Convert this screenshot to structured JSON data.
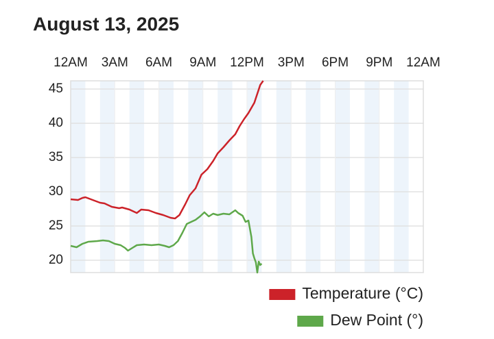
{
  "chart_data": {
    "type": "line",
    "title": "August 13, 2025",
    "xlim": [
      0,
      24
    ],
    "xticks": [
      {
        "value": 0,
        "label": "12AM"
      },
      {
        "value": 3,
        "label": "3AM"
      },
      {
        "value": 6,
        "label": "6AM"
      },
      {
        "value": 9,
        "label": "9AM"
      },
      {
        "value": 12,
        "label": "12PM"
      },
      {
        "value": 15,
        "label": "3PM"
      },
      {
        "value": 18,
        "label": "6PM"
      },
      {
        "value": 21,
        "label": "9PM"
      },
      {
        "value": 24,
        "label": "12AM"
      }
    ],
    "ylim": [
      18.2,
      46.2
    ],
    "yticks": [
      20,
      25,
      30,
      35,
      40,
      45
    ],
    "grid": true,
    "legend": "bottom-right",
    "series": [
      {
        "name": "Temperature (°C)",
        "color": "#cc2229",
        "x": [
          0,
          0.5,
          0.8,
          1.0,
          1.5,
          2.0,
          2.3,
          2.8,
          3.3,
          3.5,
          4.0,
          4.5,
          4.8,
          5.3,
          5.8,
          6.3,
          6.8,
          7.1,
          7.4,
          7.8,
          8.1,
          8.5,
          8.9,
          9.3,
          9.7,
          10.0,
          10.4,
          10.8,
          11.2,
          11.5,
          11.8,
          12.1,
          12.5,
          12.9,
          13.1
        ],
        "values": [
          28.9,
          28.8,
          29.1,
          29.2,
          28.8,
          28.4,
          28.3,
          27.8,
          27.6,
          27.7,
          27.4,
          26.9,
          27.4,
          27.3,
          26.9,
          26.6,
          26.2,
          26.1,
          26.6,
          28.2,
          29.5,
          30.5,
          32.5,
          33.3,
          34.5,
          35.6,
          36.5,
          37.5,
          38.4,
          39.6,
          40.6,
          41.5,
          43.0,
          45.6,
          46.2
        ]
      },
      {
        "name": "Dew Point (°)",
        "color": "#5ea84a",
        "x": [
          0,
          0.4,
          0.8,
          1.2,
          1.8,
          2.2,
          2.6,
          3.0,
          3.4,
          3.7,
          3.9,
          4.2,
          4.5,
          5.0,
          5.5,
          6.0,
          6.4,
          6.7,
          7.0,
          7.3,
          7.6,
          7.9,
          8.2,
          8.5,
          8.8,
          9.1,
          9.4,
          9.7,
          10.0,
          10.4,
          10.8,
          11.2,
          11.4,
          11.7,
          11.9,
          12.1,
          12.3,
          12.4,
          12.5,
          12.6,
          12.7,
          12.8,
          12.9,
          13.0
        ],
        "values": [
          22.1,
          21.9,
          22.4,
          22.7,
          22.8,
          22.9,
          22.8,
          22.4,
          22.2,
          21.8,
          21.4,
          21.8,
          22.2,
          22.3,
          22.2,
          22.3,
          22.1,
          21.9,
          22.2,
          22.8,
          24.0,
          25.3,
          25.6,
          25.9,
          26.4,
          27.0,
          26.4,
          26.8,
          26.6,
          26.8,
          26.7,
          27.3,
          26.9,
          26.5,
          25.6,
          25.8,
          23.4,
          21.0,
          20.3,
          19.7,
          18.2,
          19.8,
          19.3,
          19.5
        ]
      }
    ]
  }
}
